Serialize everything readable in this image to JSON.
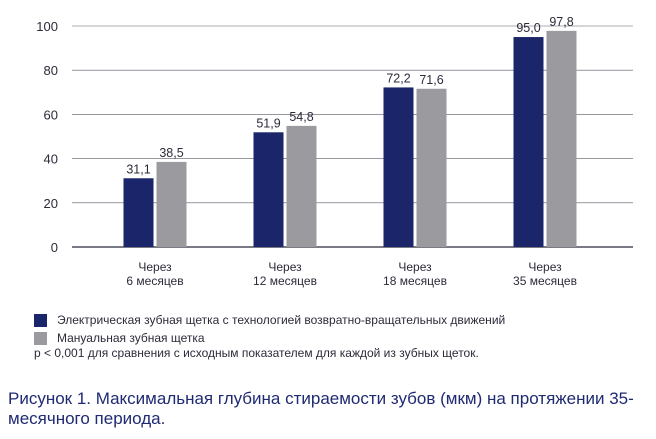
{
  "chart_data": {
    "type": "bar",
    "categories": [
      [
        "Через",
        "6 месяцев"
      ],
      [
        "Через",
        "12 месяцев"
      ],
      [
        "Через",
        "18 месяцев"
      ],
      [
        "Через",
        "35 месяцев"
      ]
    ],
    "series": [
      {
        "name": "Электрическая зубная щетка с технологией возвратно-вращательных движений",
        "values": [
          31.1,
          51.9,
          72.2,
          95.0
        ],
        "labels": [
          "31,1",
          "51,9",
          "72,2",
          "95,0"
        ],
        "color": "#1b2569"
      },
      {
        "name": "Мануальная зубная щетка",
        "values": [
          38.5,
          54.8,
          71.6,
          97.8
        ],
        "labels": [
          "38,5",
          "54,8",
          "71,6",
          "97,8"
        ],
        "color": "#9b9b9f"
      }
    ],
    "yticks": [
      "0",
      "20",
      "40",
      "60",
      "80",
      "100"
    ],
    "ylim": [
      0,
      100
    ],
    "grid": true,
    "legend_position": "bottom"
  },
  "note": "p < 0,001 для сравнения с исходным показателем для каждой из зубных щеток.",
  "caption": "Рисунок 1. Максимальная глубина стираемости зубов (мкм) на протяжении 35-месячного периода."
}
